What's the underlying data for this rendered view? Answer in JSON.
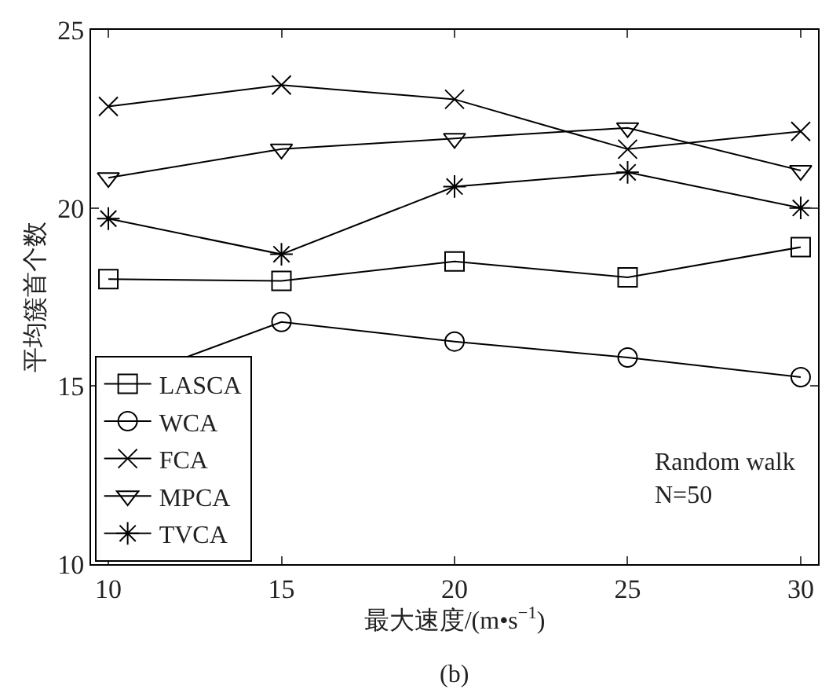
{
  "chart_data": {
    "type": "line",
    "xlabel": "最大速度/(m•s$^{−1}$)",
    "ylabel": "平均簇首个数",
    "x": [
      10,
      15,
      20,
      25,
      30
    ],
    "series": [
      {
        "name": "LASCA",
        "color": "#000000",
        "marker": "square",
        "values": [
          18.0,
          17.95,
          18.5,
          18.05,
          18.9
        ]
      },
      {
        "name": "WCA",
        "color": "#000000",
        "marker": "circle",
        "values": [
          15.0,
          16.8,
          16.25,
          15.8,
          15.25
        ]
      },
      {
        "name": "FCA",
        "color": "#000000",
        "marker": "cross",
        "values": [
          22.85,
          23.45,
          23.05,
          21.65,
          22.15
        ]
      },
      {
        "name": "MPCA",
        "color": "#000000",
        "marker": "triangle",
        "values": [
          20.85,
          21.65,
          21.95,
          22.25,
          21.05
        ]
      },
      {
        "name": "TVCA",
        "color": "#000000",
        "marker": "cross",
        "values": [
          19.7,
          18.7,
          20.6,
          21.0,
          20.0
        ]
      }
    ],
    "xlim": [
      9.5,
      30.5
    ],
    "xticks": [
      10,
      15,
      20,
      25,
      30
    ],
    "ylim": [
      10,
      25
    ],
    "yticks": [
      10,
      15,
      20,
      25
    ],
    "grid": false,
    "legend": "bottom left",
    "line_style": "solid",
    "annotations": [
      "Random walk",
      "N=50",
      "(b)"
    ]
  }
}
